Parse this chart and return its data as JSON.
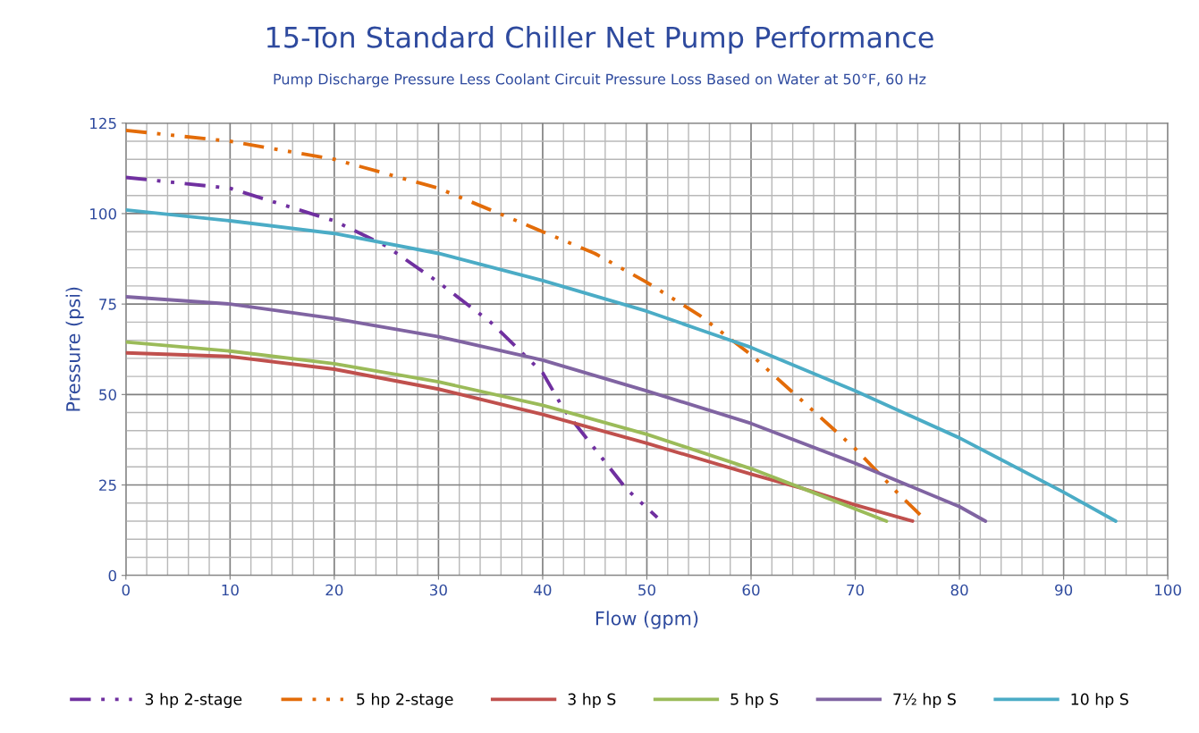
{
  "chart_data": {
    "type": "line",
    "title": "15-Ton Standard Chiller Net Pump Performance",
    "subtitle": "Pump Discharge Pressure Less Coolant Circuit Pressure Loss Based on Water at 50°F, 60 Hz",
    "xlabel": "Flow (gpm)",
    "ylabel": "Pressure (psi)",
    "xlim": [
      0,
      100
    ],
    "xticks": [
      0,
      10,
      20,
      30,
      40,
      50,
      60,
      70,
      80,
      90,
      100
    ],
    "ylim": [
      0,
      125
    ],
    "yticks": [
      0,
      25,
      50,
      75,
      100,
      125
    ],
    "grid": true,
    "legend": "bottom",
    "marker": "none",
    "series": [
      {
        "name": "3 hp 2-stage",
        "color": "#7030a0",
        "line_style": "dashdot",
        "x": [
          0,
          10,
          20,
          25,
          30,
          35,
          40,
          42,
          45,
          48,
          51
        ],
        "values": [
          110,
          107,
          98,
          91,
          81,
          70,
          56,
          46,
          35,
          24,
          16
        ]
      },
      {
        "name": "5 hp 2-stage",
        "color": "#e36c09",
        "line_style": "dashdot",
        "x": [
          0,
          10,
          20,
          30,
          35,
          40,
          45,
          50,
          55,
          60,
          65,
          70,
          74,
          76.5
        ],
        "values": [
          123,
          120,
          115,
          107,
          101,
          95,
          89,
          81,
          72,
          61,
          48,
          35,
          23,
          16
        ]
      },
      {
        "name": "3 hp S",
        "color": "#c0504d",
        "line_style": "solid",
        "x": [
          0,
          10,
          20,
          30,
          40,
          50,
          60,
          65,
          70,
          75.5
        ],
        "values": [
          61.5,
          60.5,
          57,
          51.5,
          44.5,
          36.5,
          28,
          24,
          19.5,
          15
        ]
      },
      {
        "name": "5 hp S",
        "color": "#9bbb59",
        "line_style": "solid",
        "x": [
          0,
          10,
          20,
          30,
          40,
          50,
          60,
          65,
          73
        ],
        "values": [
          64.5,
          62,
          58.5,
          53.5,
          47,
          39,
          29.5,
          24,
          15
        ]
      },
      {
        "name": "7½ hp S",
        "color": "#8064a2",
        "line_style": "solid",
        "x": [
          0,
          10,
          20,
          30,
          40,
          50,
          60,
          70,
          80,
          82.5
        ],
        "values": [
          77,
          75,
          71,
          66,
          59.5,
          51,
          42,
          31,
          19,
          15
        ]
      },
      {
        "name": "10 hp S",
        "color": "#4bacc6",
        "line_style": "solid",
        "x": [
          0,
          10,
          20,
          30,
          40,
          50,
          55,
          60,
          70,
          80,
          90,
          95
        ],
        "values": [
          101,
          98,
          94.5,
          89,
          81.5,
          73,
          68,
          63,
          51,
          38,
          23,
          15
        ]
      }
    ]
  }
}
